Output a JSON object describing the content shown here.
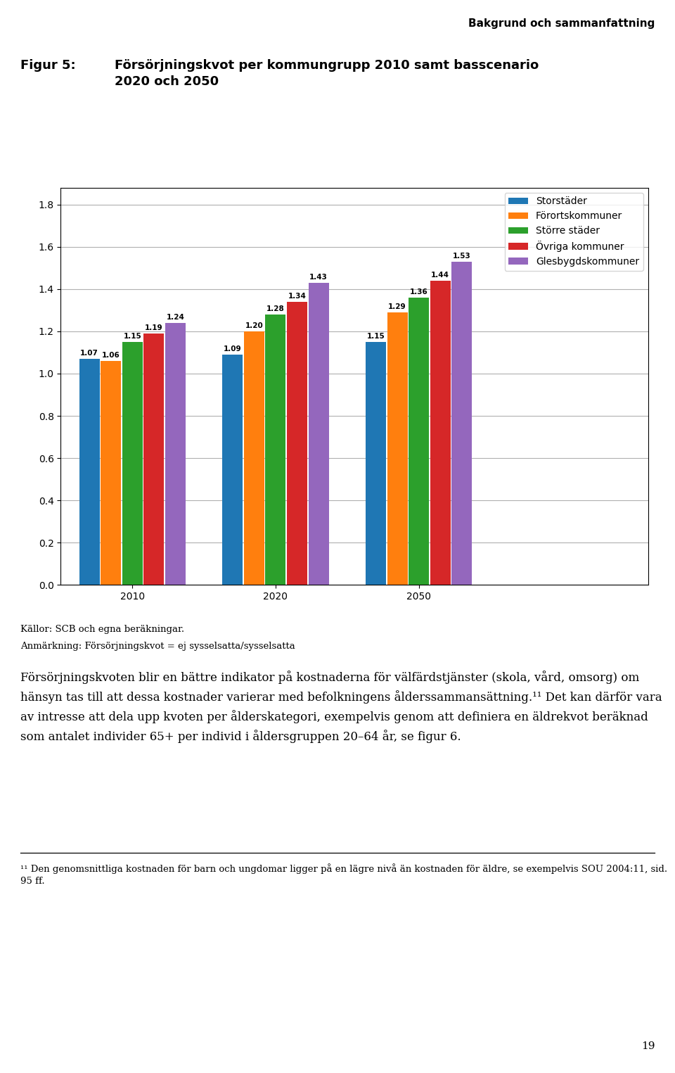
{
  "chart_data": {
    "type": "bar",
    "title": "Försörjningskvot per kommungrupp 2010 samt basscenario\n2020 och 2050",
    "categories": [
      "2010",
      "2020",
      "2050"
    ],
    "series": [
      {
        "name": "Storstäder",
        "values": [
          1.07,
          1.09,
          1.15
        ],
        "value_labels": [
          "1.07",
          "1.09",
          "1.15"
        ]
      },
      {
        "name": "Förortskommuner",
        "values": [
          1.06,
          1.2,
          1.29
        ],
        "value_labels": [
          "1.06",
          "1.20",
          "1.29"
        ]
      },
      {
        "name": "Större städer",
        "values": [
          1.15,
          1.28,
          1.36
        ],
        "value_labels": [
          "1.15",
          "1.28",
          "1.36"
        ]
      },
      {
        "name": "Övriga kommuner",
        "values": [
          1.19,
          1.34,
          1.44
        ],
        "value_labels": [
          "1.19",
          "1.34",
          "1.44"
        ]
      },
      {
        "name": "Glesbygdskommuner",
        "values": [
          1.24,
          1.43,
          1.53
        ],
        "value_labels": [
          "1.24",
          "1.43",
          "1.53"
        ]
      }
    ],
    "ylim": [
      0.0,
      1.88
    ],
    "yticks": [
      {
        "value": 0.0,
        "label": "0.0"
      },
      0.2,
      0.4,
      0.6,
      0.8,
      {
        "value": 1.0,
        "label": "1.0"
      },
      1.2,
      1.4,
      1.6,
      1.8
    ],
    "grid": true,
    "legend": "upper right",
    "data_labels": true,
    "annotations": [
      "Bakgrund och sammanfattning",
      "Figur 5:",
      "Källor: SCB och egna beräkningar.",
      "Anmärkning: Försörjningskvot = ej sysselsatta/sysselsatta",
      "Försörjningskvoten blir en bättre indikator på kostnaderna för välfärdstjänster (skola, vård, omsorg) om hänsyn tas till att dessa kostnader varierar med befolkningens ålderssammansättning.¹¹ Det kan därför vara av intresse att dela upp kvoten per ålderskategori, exempelvis genom att definiera en äldrekvot beräknad som antalet individer 65+ per individ i åldersgruppen 20–64 år, se figur 6.",
      "¹¹ Den genomsnittliga kostnaden för barn och ungdomar ligger på en lägre nivå än kostnaden för äldre, se exempelvis SOU 2004:11, sid. 95 ff.",
      "19"
    ]
  }
}
